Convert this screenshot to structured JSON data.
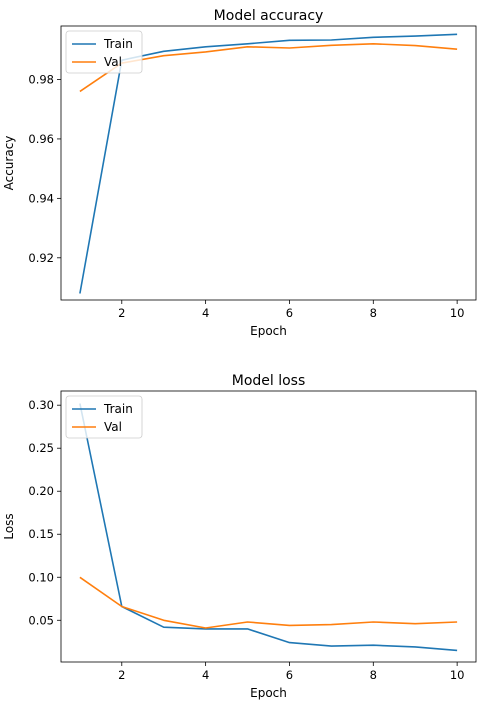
{
  "chart_data": [
    {
      "type": "line",
      "title": "Model accuracy",
      "xlabel": "Epoch",
      "ylabel": "Accuracy",
      "xlim": [
        0.55,
        10.45
      ],
      "ylim": [
        0.9058,
        0.998
      ],
      "xticks": [
        2,
        4,
        6,
        8,
        10
      ],
      "yticks": [
        0.92,
        0.94,
        0.96,
        0.98
      ],
      "ytick_labels": [
        "0.92",
        "0.94",
        "0.96",
        "0.98"
      ],
      "legend": "upper-left",
      "x": [
        1,
        2,
        3,
        4,
        5,
        6,
        7,
        8,
        9,
        10
      ],
      "series": [
        {
          "name": "Train",
          "color": "#1f77b4",
          "values": [
            0.908,
            0.9865,
            0.9895,
            0.991,
            0.992,
            0.9932,
            0.9933,
            0.9942,
            0.9946,
            0.9952
          ]
        },
        {
          "name": "Val",
          "color": "#ff7f0e",
          "values": [
            0.976,
            0.9855,
            0.988,
            0.9893,
            0.991,
            0.9906,
            0.9915,
            0.992,
            0.9914,
            0.9902
          ]
        }
      ]
    },
    {
      "type": "line",
      "title": "Model loss",
      "xlabel": "Epoch",
      "ylabel": "Loss",
      "xlim": [
        0.55,
        10.45
      ],
      "ylim": [
        0.0015,
        0.3165
      ],
      "xticks": [
        2,
        4,
        6,
        8,
        10
      ],
      "yticks": [
        0.05,
        0.1,
        0.15,
        0.2,
        0.25,
        0.3
      ],
      "ytick_labels": [
        "0.05",
        "0.10",
        "0.15",
        "0.20",
        "0.25",
        "0.30"
      ],
      "legend": "upper-left",
      "x": [
        1,
        2,
        3,
        4,
        5,
        6,
        7,
        8,
        9,
        10
      ],
      "series": [
        {
          "name": "Train",
          "color": "#1f77b4",
          "values": [
            0.302,
            0.066,
            0.042,
            0.04,
            0.04,
            0.024,
            0.02,
            0.021,
            0.019,
            0.015
          ]
        },
        {
          "name": "Val",
          "color": "#ff7f0e",
          "values": [
            0.1,
            0.066,
            0.05,
            0.041,
            0.048,
            0.044,
            0.045,
            0.048,
            0.046,
            0.048
          ]
        }
      ]
    }
  ]
}
